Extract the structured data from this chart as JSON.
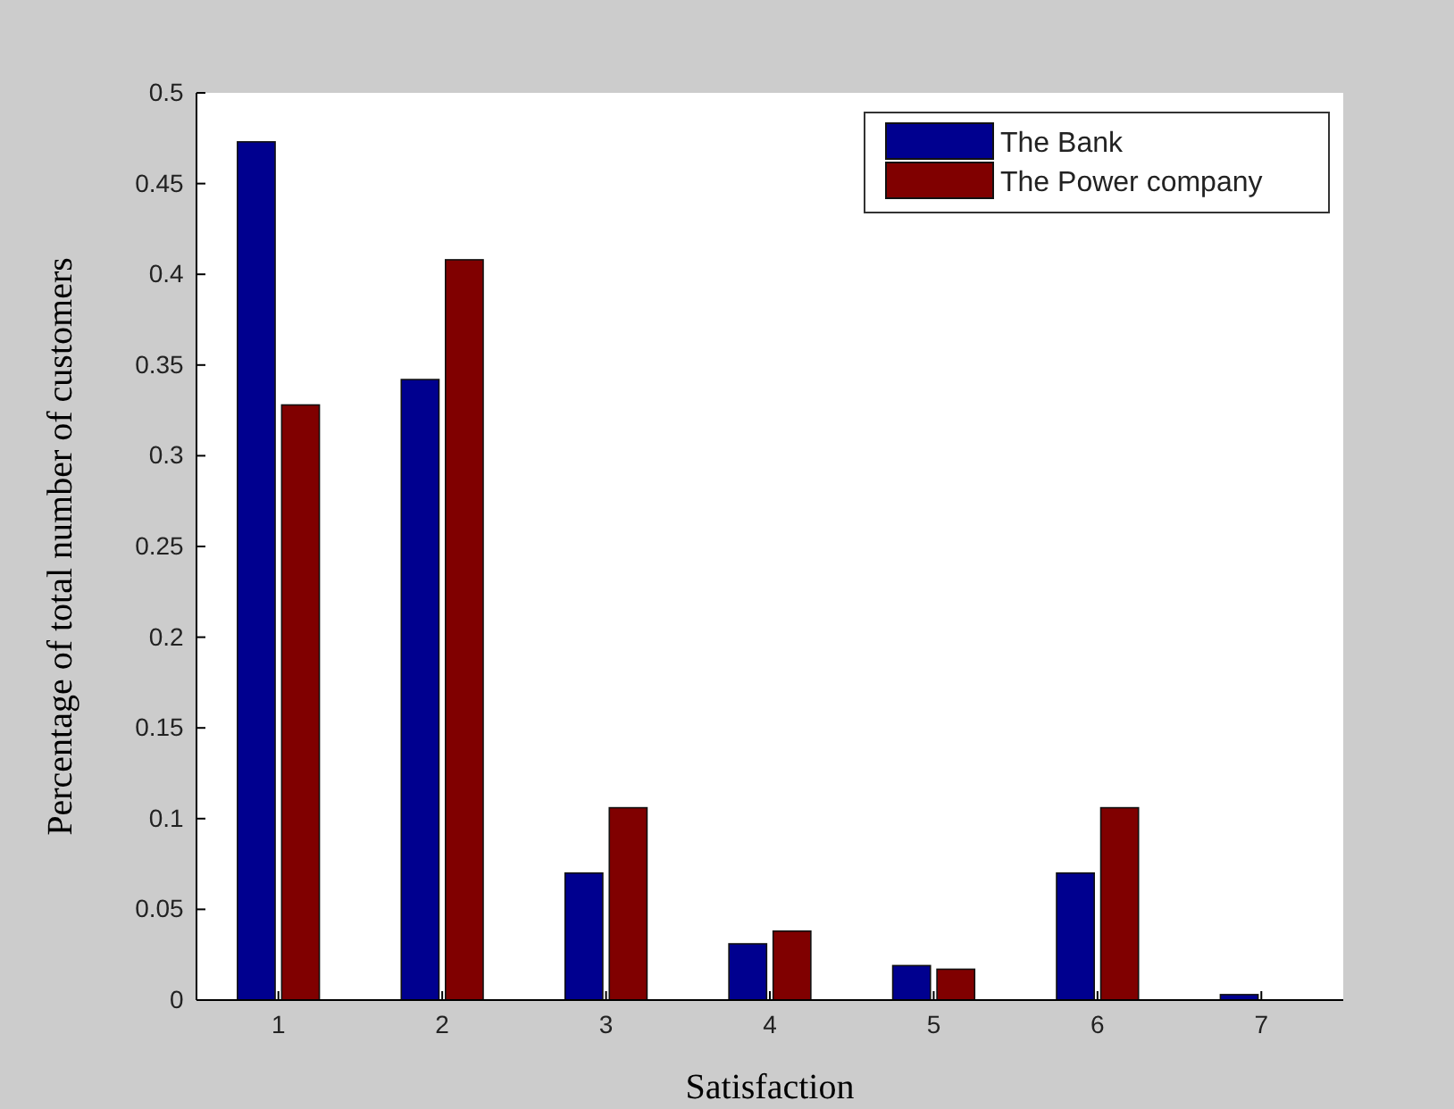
{
  "chart_data": {
    "type": "bar",
    "xlabel": "Satisfaction",
    "ylabel": "Percentage of total number of customers",
    "categories": [
      "1",
      "2",
      "3",
      "4",
      "5",
      "6",
      "7"
    ],
    "series": [
      {
        "name": "The Bank",
        "color": "#00008f",
        "values": [
          0.473,
          0.342,
          0.07,
          0.031,
          0.019,
          0.07,
          0.003
        ]
      },
      {
        "name": "The Power company",
        "color": "#800000",
        "values": [
          0.328,
          0.408,
          0.106,
          0.038,
          0.017,
          0.106,
          0
        ]
      }
    ],
    "ylim": [
      0,
      0.5
    ],
    "yticks": [
      0,
      0.05,
      0.1,
      0.15,
      0.2,
      0.25,
      0.3,
      0.35,
      0.4,
      0.45,
      0.5
    ],
    "grid": false,
    "legend": "top right"
  }
}
